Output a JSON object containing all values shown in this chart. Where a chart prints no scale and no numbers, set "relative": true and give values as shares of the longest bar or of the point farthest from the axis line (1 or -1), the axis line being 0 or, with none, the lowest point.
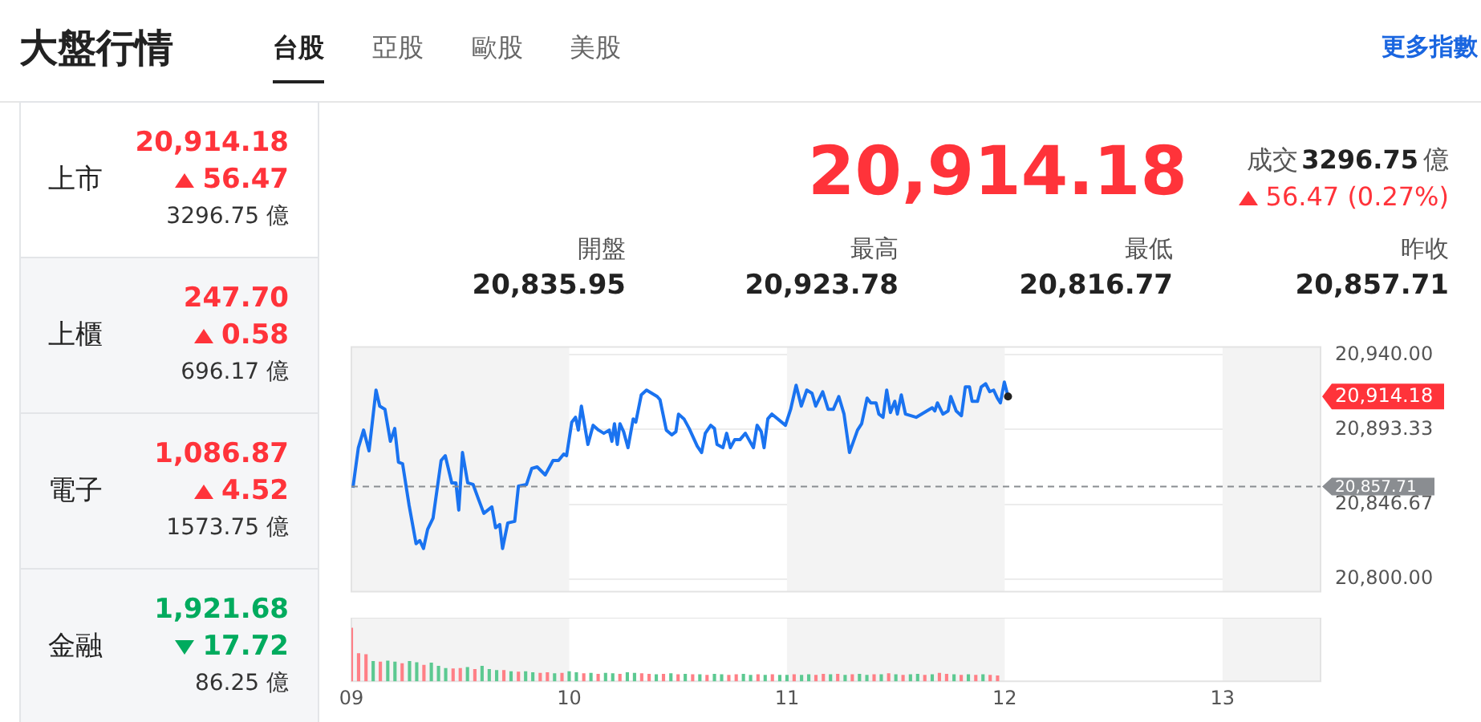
{
  "chart_data": [
    {
      "type": "other",
      "title": "大盤行情",
      "annotations": [
        "台股",
        "亞股",
        "歐股",
        "美股",
        "更多指數",
        "上市",
        "20,914.18",
        "56.47",
        "3296.75 億",
        "上櫃",
        "247.70",
        "0.58",
        "696.17 億",
        "電子",
        "1,086.87",
        "4.52",
        "1573.75 億",
        "金融",
        "1,921.68",
        "17.72",
        "86.25 億",
        "20,914.18",
        "成交",
        "3296.75",
        "億",
        "56.47 (0.27%)",
        "開盤",
        "20,835.95",
        "最高",
        "20,923.78",
        "最低",
        "20,816.77",
        "昨收",
        "20,857.71"
      ]
    },
    {
      "type": "line",
      "tick_labels": "y",
      "grid": "y",
      "marker": "none",
      "line_style": "solid",
      "xlim": [
        9,
        13.45
      ],
      "ylim": [
        20792,
        20945
      ],
      "yticks": [
        {
          "value": 20940,
          "label": "20,940.00"
        },
        {
          "value": 20893.33,
          "label": "20,893.33"
        },
        {
          "value": 20846.67,
          "label": "20,846.67"
        },
        {
          "value": 20800,
          "label": "20,800.00"
        }
      ],
      "bands": [
        {
          "axis": "x",
          "from": 9,
          "to": 10,
          "color": "#f3f3f3"
        },
        {
          "axis": "x",
          "from": 11,
          "to": 12,
          "color": "#f3f3f3"
        },
        {
          "axis": "x",
          "from": 13,
          "to": 13.45,
          "color": "#f3f3f3"
        }
      ],
      "ref_lines": [
        {
          "axis": "y",
          "value": 20857.71,
          "label": "20,857.71",
          "color": "#8a8d91",
          "line_style": "dashed"
        }
      ],
      "annotations": [
        "20,914.18"
      ],
      "x": [
        9.007,
        9.032,
        9.056,
        9.081,
        9.113,
        9.13,
        9.154,
        9.179,
        9.199,
        9.216,
        9.235,
        9.265,
        9.297,
        9.314,
        9.331,
        9.35,
        9.375,
        9.412,
        9.431,
        9.461,
        9.48,
        9.493,
        9.51,
        9.534,
        9.559,
        9.583,
        9.608,
        9.645,
        9.662,
        9.681,
        9.694,
        9.718,
        9.75,
        9.767,
        9.804,
        9.828,
        9.853,
        9.89,
        9.926,
        9.951,
        9.975,
        9.988,
        10.012,
        10.029,
        10.042,
        10.056,
        10.086,
        10.11,
        10.135,
        10.159,
        10.184,
        10.196,
        10.208,
        10.221,
        10.233,
        10.25,
        10.27,
        10.294,
        10.306,
        10.331,
        10.355,
        10.404,
        10.417,
        10.446,
        10.471,
        10.49,
        10.502,
        10.527,
        10.551,
        10.588,
        10.608,
        10.625,
        10.65,
        10.667,
        10.679,
        10.706,
        10.723,
        10.74,
        10.76,
        10.784,
        10.809,
        10.846,
        10.863,
        10.882,
        10.895,
        10.912,
        10.931,
        10.993,
        11.017,
        11.042,
        11.066,
        11.091,
        11.115,
        11.132,
        11.164,
        11.189,
        11.213,
        11.238,
        11.262,
        11.287,
        11.324,
        11.343,
        11.368,
        11.385,
        11.409,
        11.422,
        11.441,
        11.458,
        11.475,
        11.495,
        11.507,
        11.525,
        11.544,
        11.593,
        11.63,
        11.667,
        11.679,
        11.691,
        11.716,
        11.74,
        11.752,
        11.777,
        11.801,
        11.819,
        11.838,
        11.85,
        11.875,
        11.892,
        11.912,
        11.931,
        11.949,
        11.966,
        11.98,
        11.998,
        12.015
      ],
      "series": [
        {
          "color": "#1a73f0",
          "values": [
            20857,
            20882,
            20893,
            20880,
            20918,
            20908,
            20906,
            20886,
            20894,
            20873,
            20872,
            20846,
            20822,
            20824,
            20819,
            20831,
            20838,
            20874,
            20877,
            20860,
            20860,
            20843,
            20879,
            20860,
            20859,
            20850,
            20841,
            20845,
            20832,
            20834,
            20819,
            20835,
            20836,
            20858,
            20859,
            20869,
            20870,
            20865,
            20874,
            20874,
            20878,
            20877,
            20898,
            20901,
            20893,
            20908,
            20884,
            20896,
            20893,
            20891,
            20893,
            20886,
            20897,
            20884,
            20897,
            20892,
            20882,
            20900,
            20898,
            20915,
            20918,
            20914,
            20912,
            20893,
            20890,
            20892,
            20903,
            20900,
            20894,
            20883,
            20879,
            20891,
            20896,
            20894,
            20884,
            20882,
            20891,
            20882,
            20887,
            20887,
            20891,
            20882,
            20896,
            20892,
            20882,
            20900,
            20903,
            20896,
            20906,
            20921,
            20908,
            20918,
            20916,
            20908,
            20917,
            20906,
            20906,
            20914,
            20903,
            20879,
            20893,
            20897,
            20913,
            20910,
            20910,
            20903,
            20901,
            20918,
            20904,
            20911,
            20903,
            20915,
            20903,
            20901,
            20904,
            20907,
            20905,
            20910,
            20903,
            20905,
            20914,
            20905,
            20902,
            20920,
            20920,
            20911,
            20911,
            20920,
            20922,
            20917,
            20918,
            20913,
            20910,
            20923,
            20914
          ]
        }
      ]
    },
    {
      "type": "bar",
      "relative": true,
      "tick_labels": "x",
      "xlim": [
        9,
        13.45
      ],
      "xticks": [
        {
          "value": 9,
          "label": "09"
        },
        10,
        11,
        12,
        13
      ],
      "bands": [
        {
          "axis": "x",
          "from": 9,
          "to": 10,
          "color": "#f3f3f3"
        },
        {
          "axis": "x",
          "from": 11,
          "to": 12,
          "color": "#f3f3f3"
        },
        {
          "axis": "x",
          "from": 13,
          "to": 13.45,
          "color": "#f3f3f3"
        }
      ],
      "x": [
        9,
        9.033,
        9.067,
        9.1,
        9.133,
        9.167,
        9.2,
        9.233,
        9.267,
        9.3,
        9.333,
        9.367,
        9.4,
        9.433,
        9.467,
        9.5,
        9.533,
        9.567,
        9.6,
        9.633,
        9.667,
        9.7,
        9.733,
        9.767,
        9.8,
        9.833,
        9.867,
        9.9,
        9.933,
        9.967,
        10,
        10.033,
        10.067,
        10.1,
        10.133,
        10.167,
        10.2,
        10.233,
        10.267,
        10.3,
        10.333,
        10.367,
        10.4,
        10.433,
        10.467,
        10.5,
        10.533,
        10.567,
        10.6,
        10.633,
        10.667,
        10.7,
        10.733,
        10.767,
        10.8,
        10.833,
        10.867,
        10.9,
        10.933,
        10.967,
        11,
        11.033,
        11.067,
        11.1,
        11.133,
        11.167,
        11.2,
        11.233,
        11.267,
        11.3,
        11.333,
        11.367,
        11.4,
        11.433,
        11.467,
        11.5,
        11.533,
        11.567,
        11.6,
        11.633,
        11.667,
        11.7,
        11.733,
        11.767,
        11.8,
        11.833,
        11.867,
        11.9,
        11.933,
        11.967
      ],
      "values": [
        1,
        0.52,
        0.5,
        0.37,
        0.36,
        0.38,
        0.36,
        0.33,
        0.37,
        0.35,
        0.3,
        0.34,
        0.28,
        0.24,
        0.23,
        0.24,
        0.26,
        0.22,
        0.28,
        0.22,
        0.2,
        0.2,
        0.18,
        0.17,
        0.18,
        0.16,
        0.15,
        0.16,
        0.14,
        0.15,
        0.18,
        0.16,
        0.14,
        0.15,
        0.13,
        0.15,
        0.14,
        0.13,
        0.16,
        0.15,
        0.14,
        0.13,
        0.12,
        0.13,
        0.14,
        0.12,
        0.13,
        0.12,
        0.12,
        0.11,
        0.13,
        0.12,
        0.11,
        0.12,
        0.13,
        0.11,
        0.12,
        0.11,
        0.12,
        0.11,
        0.11,
        0.12,
        0.11,
        0.12,
        0.11,
        0.13,
        0.12,
        0.13,
        0.11,
        0.12,
        0.13,
        0.11,
        0.12,
        0.12,
        0.14,
        0.12,
        0.11,
        0.12,
        0.13,
        0.11,
        0.12,
        0.15,
        0.13,
        0.12,
        0.11,
        0.12,
        0.11,
        0.12,
        0.11,
        0.1
      ],
      "colors": [
        "#ff7f86",
        "#ff7f86",
        "#ff7f86",
        "#5cc991",
        "#ff7f86",
        "#5cc991",
        "#5cc991",
        "#ff7f86",
        "#5cc991",
        "#5cc991",
        "#ff7f86",
        "#5cc991",
        "#5cc991",
        "#5cc991",
        "#ff7f86",
        "#ff7f86",
        "#5cc991",
        "#ff7f86",
        "#5cc991",
        "#5cc991",
        "#5cc991",
        "#ff7f86",
        "#5cc991",
        "#ff7f86",
        "#5cc991",
        "#5cc991",
        "#ff7f86",
        "#ff7f86",
        "#5cc991",
        "#ff7f86",
        "#5cc991",
        "#5cc991",
        "#ff7f86",
        "#5cc991",
        "#ff7f86",
        "#5cc991",
        "#5cc991",
        "#ff7f86",
        "#5cc991",
        "#5cc991",
        "#ff7f86",
        "#ff7f86",
        "#5cc991",
        "#ff7f86",
        "#5cc991",
        "#ff7f86",
        "#5cc991",
        "#ff7f86",
        "#5cc991",
        "#ff7f86",
        "#5cc991",
        "#5cc991",
        "#ff7f86",
        "#ff7f86",
        "#5cc991",
        "#5cc991",
        "#ff7f86",
        "#5cc991",
        "#ff7f86",
        "#5cc991",
        "#5cc991",
        "#ff7f86",
        "#5cc991",
        "#5cc991",
        "#ff7f86",
        "#ff7f86",
        "#5cc991",
        "#ff7f86",
        "#5cc991",
        "#ff7f86",
        "#5cc991",
        "#5cc991",
        "#ff7f86",
        "#5cc991",
        "#ff7f86",
        "#5cc991",
        "#ff7f86",
        "#5cc991",
        "#5cc991",
        "#ff7f86",
        "#5cc991",
        "#ff7f86",
        "#ff7f86",
        "#5cc991",
        "#ff7f86",
        "#5cc991",
        "#ff7f86",
        "#5cc991",
        "#ff7f86",
        "#ff7f86"
      ]
    }
  ]
}
